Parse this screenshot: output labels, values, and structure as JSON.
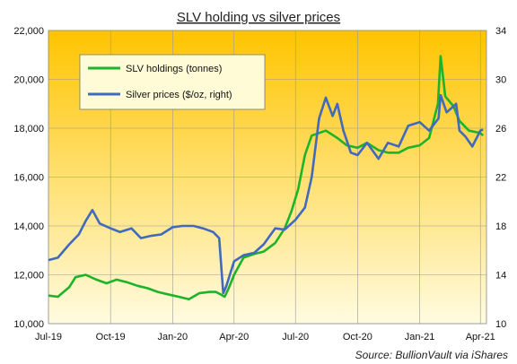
{
  "chart_data": {
    "type": "line",
    "title": "SLV holding vs silver prices",
    "source": "Source:  BullionVault via iShares",
    "x_ticks": [
      "Jul-19",
      "Oct-19",
      "Jan-20",
      "Apr-20",
      "Jul-20",
      "Oct-20",
      "Jan-21",
      "Apr-21"
    ],
    "left_axis": {
      "ticks": [
        "10,000",
        "12,000",
        "14,000",
        "16,000",
        "18,000",
        "20,000",
        "22,000"
      ],
      "ylim": [
        10000,
        22000
      ]
    },
    "right_axis": {
      "ticks": [
        "10",
        "14",
        "18",
        "22",
        "26",
        "30",
        "34"
      ],
      "ylim": [
        10,
        34
      ]
    },
    "legend": {
      "placement": "upper-left"
    },
    "colors": {
      "holdings": "#1db32b",
      "price": "#4169bd",
      "bg_top": "#ffc400",
      "bg_bottom": "#fffbe0"
    },
    "series": [
      {
        "name": "SLV holdings (tonnes)",
        "axis": "left",
        "x": [
          "2019-07-01",
          "2019-07-15",
          "2019-08-01",
          "2019-08-10",
          "2019-08-25",
          "2019-09-10",
          "2019-09-25",
          "2019-10-10",
          "2019-10-25",
          "2019-11-10",
          "2019-11-25",
          "2019-12-10",
          "2019-12-25",
          "2020-01-10",
          "2020-01-25",
          "2020-02-10",
          "2020-02-25",
          "2020-03-05",
          "2020-03-12",
          "2020-03-18",
          "2020-03-24",
          "2020-04-01",
          "2020-04-15",
          "2020-05-01",
          "2020-05-15",
          "2020-06-01",
          "2020-06-15",
          "2020-06-25",
          "2020-07-05",
          "2020-07-15",
          "2020-07-25",
          "2020-08-05",
          "2020-08-15",
          "2020-09-01",
          "2020-09-15",
          "2020-10-01",
          "2020-10-15",
          "2020-11-01",
          "2020-11-15",
          "2020-12-01",
          "2020-12-15",
          "2021-01-01",
          "2021-01-15",
          "2021-01-28",
          "2021-02-01",
          "2021-02-08",
          "2021-02-20",
          "2021-03-01",
          "2021-03-15",
          "2021-04-01",
          "2021-04-05"
        ],
        "values": [
          11150,
          11100,
          11500,
          11900,
          12000,
          11800,
          11650,
          11800,
          11700,
          11550,
          11450,
          11300,
          11200,
          11100,
          11000,
          11250,
          11300,
          11300,
          11200,
          11100,
          11450,
          12000,
          12700,
          12850,
          12950,
          13300,
          13900,
          14600,
          15500,
          16900,
          17700,
          17800,
          17900,
          17600,
          17300,
          17200,
          17400,
          17100,
          17000,
          17000,
          17200,
          17300,
          17600,
          19000,
          20950,
          19300,
          18900,
          18300,
          17900,
          17800,
          17700
        ]
      },
      {
        "name": "Silver prices ($/oz, right)",
        "axis": "right",
        "x": [
          "2019-07-01",
          "2019-07-15",
          "2019-08-01",
          "2019-08-15",
          "2019-08-25",
          "2019-09-04",
          "2019-09-15",
          "2019-10-01",
          "2019-10-15",
          "2019-11-01",
          "2019-11-15",
          "2019-12-01",
          "2019-12-15",
          "2020-01-01",
          "2020-01-15",
          "2020-02-01",
          "2020-02-15",
          "2020-03-01",
          "2020-03-10",
          "2020-03-16",
          "2020-03-20",
          "2020-04-01",
          "2020-04-15",
          "2020-05-01",
          "2020-05-15",
          "2020-06-01",
          "2020-06-15",
          "2020-07-01",
          "2020-07-15",
          "2020-07-25",
          "2020-08-05",
          "2020-08-15",
          "2020-08-25",
          "2020-09-01",
          "2020-09-10",
          "2020-09-21",
          "2020-10-01",
          "2020-10-15",
          "2020-11-01",
          "2020-11-15",
          "2020-12-01",
          "2020-12-15",
          "2021-01-01",
          "2021-01-15",
          "2021-01-29",
          "2021-02-01",
          "2021-02-10",
          "2021-02-24",
          "2021-03-01",
          "2021-03-10",
          "2021-03-20",
          "2021-04-01",
          "2021-04-05"
        ],
        "values": [
          15.2,
          15.4,
          16.5,
          17.3,
          18.4,
          19.3,
          18.2,
          17.8,
          17.5,
          17.8,
          17.0,
          17.2,
          17.3,
          17.9,
          18.0,
          18.0,
          17.8,
          17.5,
          17.0,
          12.5,
          13.0,
          15.1,
          15.6,
          15.8,
          16.5,
          17.8,
          17.7,
          18.5,
          19.5,
          22.0,
          26.8,
          28.5,
          27.0,
          28.0,
          25.8,
          24.0,
          23.8,
          24.8,
          23.5,
          24.8,
          24.5,
          26.2,
          26.5,
          25.8,
          26.8,
          28.7,
          27.3,
          28.0,
          25.8,
          25.3,
          24.5,
          25.8,
          25.9
        ]
      }
    ]
  }
}
